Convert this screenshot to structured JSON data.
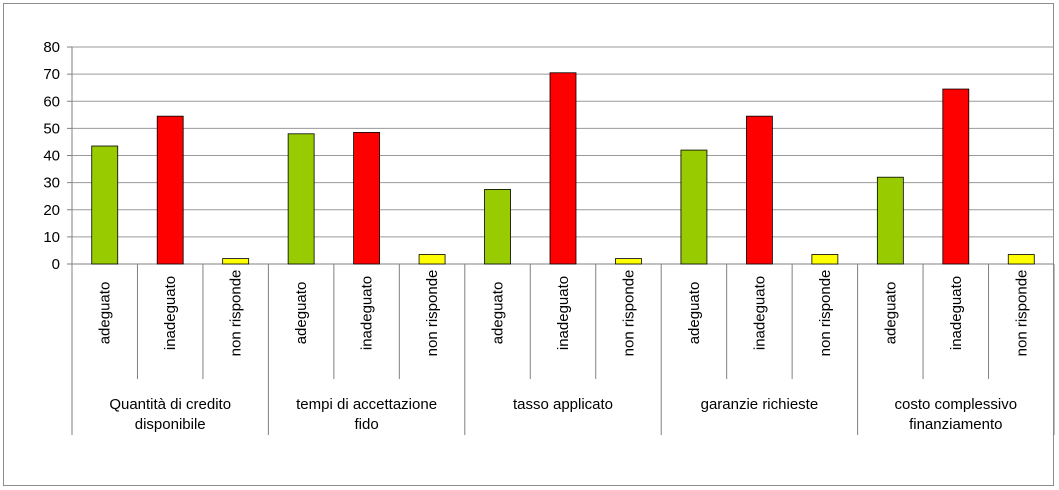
{
  "chart_data": {
    "type": "bar",
    "title": "",
    "xlabel": "",
    "ylabel": "",
    "ylim": [
      0,
      80
    ],
    "yticks": [
      0,
      10,
      20,
      30,
      40,
      50,
      60,
      70,
      80
    ],
    "grid": true,
    "legend": "none",
    "groups": [
      {
        "label": "Quantità di credito disponibile",
        "lines": [
          "Quantità di credito",
          "disponibile"
        ]
      },
      {
        "label": "tempi di accettazione fido",
        "lines": [
          "tempi di accettazione",
          "fido"
        ]
      },
      {
        "label": "tasso applicato",
        "lines": [
          "tasso applicato"
        ]
      },
      {
        "label": "garanzie richieste",
        "lines": [
          "garanzie richieste"
        ]
      },
      {
        "label": "costo complessivo finanziamento",
        "lines": [
          "costo complessivo",
          "finanziamento"
        ]
      }
    ],
    "categories": [
      "adeguato",
      "inadeguato",
      "non risponde"
    ],
    "values": [
      [
        43.5,
        54.5,
        2.0
      ],
      [
        48.0,
        48.5,
        3.5
      ],
      [
        27.5,
        70.5,
        2.0
      ],
      [
        42.0,
        54.5,
        3.5
      ],
      [
        32.0,
        64.5,
        3.5
      ]
    ],
    "colors": {
      "adeguato": "#99cc00",
      "inadeguato": "#ff0000",
      "non risponde": "#ffff00"
    }
  }
}
